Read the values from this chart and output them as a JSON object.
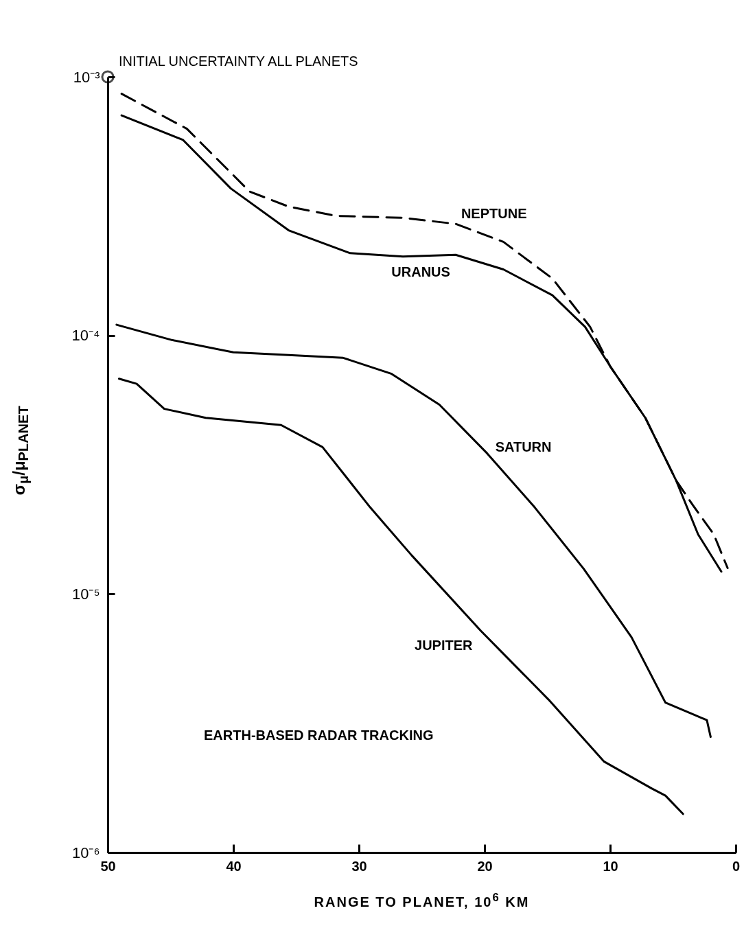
{
  "chart_data": {
    "type": "line",
    "xlabel": "RANGE TO PLANET, 10$^{6}$ KM",
    "ylabel": "σ$_{μ}$/μ$_{PLANET}$",
    "log": true,
    "grid": false,
    "xlim": [
      50,
      0
    ],
    "xticks": [
      50,
      40,
      30,
      20,
      10,
      0
    ],
    "ylim": [
      1e-06,
      0.001
    ],
    "yticks": [
      {
        "value": 1e-06,
        "label": "10⁻⁶"
      },
      {
        "value": 1e-05,
        "label": "10⁻⁵"
      },
      {
        "value": 0.0001,
        "label": "10⁻⁴"
      },
      {
        "value": 0.001,
        "label": "10⁻³"
      }
    ],
    "series": [
      {
        "name": "NEPTUNE",
        "color": "#000000",
        "line_style": "dashed",
        "x": [
          48.9,
          43.7,
          38.7,
          35.6,
          31.8,
          26.5,
          22.3,
          18.5,
          14.6,
          11.6,
          10,
          7.2,
          4.75,
          3.4,
          1.75,
          0.65
        ],
        "values": [
          0.00086,
          0.00063,
          0.00036,
          0.000315,
          0.00029,
          0.000285,
          0.00027,
          0.00023,
          0.000166,
          0.000108,
          7.6e-05,
          4.8e-05,
          2.75e-05,
          2.2e-05,
          1.7e-05,
          1.26e-05
        ]
      },
      {
        "name": "URANUS",
        "color": "#000000",
        "line_style": "solid",
        "x": [
          48.9,
          44.0,
          40.2,
          35.6,
          30.7,
          26.5,
          22.3,
          18.5,
          14.6,
          12.0,
          10,
          7.2,
          4.75,
          3.0,
          1.15
        ],
        "values": [
          0.00071,
          0.00057,
          0.00037,
          0.000255,
          0.000208,
          0.000202,
          0.000205,
          0.00018,
          0.000143,
          0.000108,
          7.6e-05,
          4.8e-05,
          2.75e-05,
          1.7e-05,
          1.22e-05
        ]
      },
      {
        "name": "SATURN",
        "color": "#000000",
        "line_style": "solid",
        "x": [
          49.3,
          44.9,
          40,
          35.6,
          31.3,
          27.4,
          23.6,
          19.8,
          16,
          12.1,
          8.3,
          5.6,
          2.3,
          2.0
        ],
        "values": [
          0.00011,
          9.6e-05,
          8.6e-05,
          8.4e-05,
          8.2e-05,
          7.1e-05,
          5.4e-05,
          3.5e-05,
          2.16e-05,
          1.25e-05,
          6.8e-06,
          3.8e-06,
          3.25e-06,
          2.8e-06
        ]
      },
      {
        "name": "JUPITER",
        "color": "#000000",
        "line_style": "solid",
        "x": [
          49.1,
          47.7,
          45.5,
          42.2,
          36.2,
          32.9,
          29.1,
          25.8,
          20.3,
          14.9,
          10.5,
          6.7,
          5.6,
          4.2
        ],
        "values": [
          6.8e-05,
          6.5e-05,
          5.2e-05,
          4.8e-05,
          4.5e-05,
          3.7e-05,
          2.16e-05,
          1.41e-05,
          7.2e-06,
          3.9e-06,
          2.25e-06,
          1.77e-06,
          1.66e-06,
          1.41e-06
        ]
      },
      {
        "type": "scatter",
        "marker": "circle",
        "color": "#000000",
        "x": [
          50
        ],
        "values": [
          0.001
        ]
      }
    ],
    "annotations": [
      "INITIAL UNCERTAINTY ALL PLANETS",
      "EARTH-BASED RADAR TRACKING"
    ]
  }
}
